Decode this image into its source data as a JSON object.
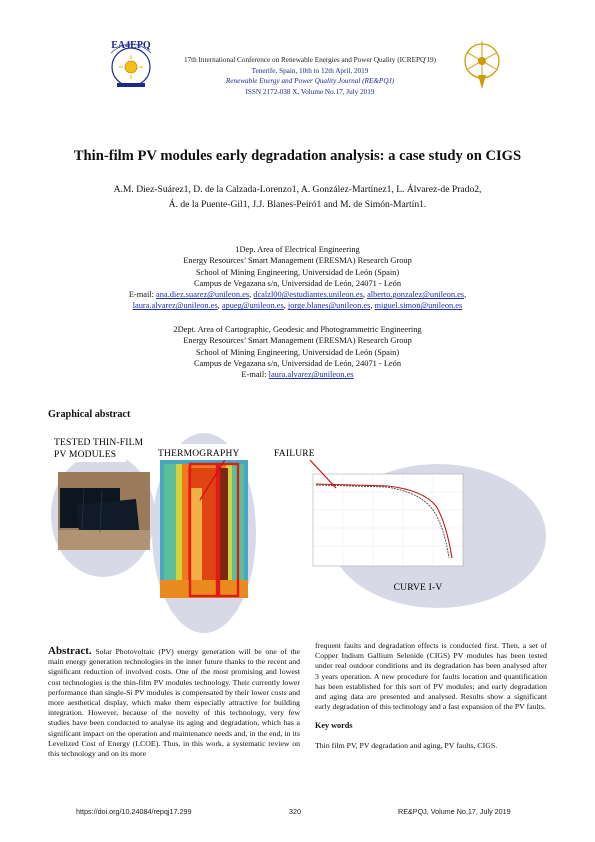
{
  "header": {
    "line1": "17th International Conference on Renewable Energies and Power Quality (ICREPQ'19)",
    "line2": "Tenerife, Spain, 10th to 12th April, 2019",
    "line3": "Renewable Energy and Power Quality Journal (RE&PQJ)",
    "line4": "ISSN 2172-038 X, Volume No.17, July 2019",
    "logo_text": "EA4EPQ"
  },
  "title": "Thin-film PV modules early degradation analysis: a case study on CIGS",
  "authors_line1": "A.M. Diez-Suárez1, D. de la Calzada-Lorenzo1, A. González-Martínez1, L. Álvarez-de Prado2,",
  "authors_line2": "Á. de la Puente-Gil1, J.J. Blanes-Peiró1 and M. de Simón-Martín1.",
  "aff1": {
    "l1": "1Dep. Area of Electrical Engineering",
    "l2": "Energy Resources’ Smart Management (ERESMA) Research Group",
    "l3": "School of Mining Engineering, Universidad de León (Spain)",
    "l4": "Campus de Vegazana s/n, Universidad de León, 24071 - León",
    "email_label": "E-mail:",
    "emails1": [
      "ana.diez.suarez@unileon.es",
      "dcalzl00@estudiantes.unileon.es",
      "alberto.gonzalez@unileon.es"
    ],
    "emails2": [
      "laura.alvarez@unileon.es",
      "apueg@unileon.es",
      "jorge.blanes@unileon.es",
      "miguel.simon@unileon.es"
    ]
  },
  "aff2": {
    "l1": "2Dept. Area of Cartographic, Geodesic and Photogrammetric Engineering",
    "l2": "Energy Resources’ Smart Management (ERESMA) Research Group",
    "l3": "School of Mining Engineering, Universidad de León (Spain)",
    "l4": "Campus de Vegazana s/n, Universidad de León, 24071 - León",
    "email_label": "E-mail:",
    "email": "laura.alvarez@unileon.es"
  },
  "graphical_abstract": {
    "heading": "Graphical abstract",
    "label_tested_1": "TESTED THIN-FILM",
    "label_tested_2": "PV MODULES",
    "label_thermo": "THERMOGRAPHY",
    "label_failure": "FAILURE",
    "label_curve": "CURVE I-V"
  },
  "abstract": {
    "heading": "Abstract.",
    "left_text": "Solar Photovoltaic (PV) energy generation will be one of the main energy generation technologies in the inner future thanks to the recent and significant reduction of involved costs. One of the most promising and lowest cost technologies is the thin-film PV modules technology. Their currently lower performance than single-Si PV modules is compensated by their lower costs and more aesthetical display, which make them especially attractive for building integration. However, because of the novelty of this technology, very few studies have been conducted to analyse its aging and degradation, which has a significant impact on the operation and maintenance needs and, in the end, in its Levelized Cost of Energy (LCOE). Thus, in this work, a systematic review on this technology and on its more",
    "right_text": "frequent faults and degradation effects is conducted first. Then, a set of Copper Indium Gallium Selenide (CIGS) PV modules has been tested under real outdoor conditions and its degradation has been analysed after 3 years operation. A new procedure for faults location and quantification has been established for this sort of PV modules; and early degradation and aging data are presented and analysed. Results show a significant early degradation of this technology and a fast expansion of the PV faults."
  },
  "keywords": {
    "heading": "Key words",
    "text": "Thin film PV, PV degradation and aging, PV faults, CIGS."
  },
  "footer": {
    "doi": "https://doi.org/10.24084/repqj17.299",
    "page": "320",
    "journal": "RE&PQJ, Volume No.17, July 2019"
  }
}
